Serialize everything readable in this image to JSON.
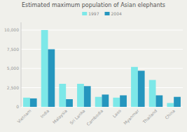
{
  "chart_data": {
    "type": "bar",
    "title": "Estimated maximum population of Asian elephants",
    "categories": [
      "Vietnam",
      "India",
      "Malaysia",
      "Sri Lanka",
      "Cambodia",
      "Laos",
      "Myanmar",
      "Thailand",
      "China"
    ],
    "series": [
      {
        "name": "1997",
        "color": "#7DE8E8",
        "values": [
          1200,
          10000,
          3000,
          3000,
          1300,
          1200,
          5200,
          3500,
          500
        ]
      },
      {
        "name": "2004",
        "color": "#2596BE",
        "values": [
          1100,
          7500,
          1000,
          2700,
          1600,
          1500,
          4700,
          1500,
          1300
        ]
      }
    ],
    "ylim": [
      0,
      11000
    ],
    "yticks": [
      0,
      {
        "value": 2500,
        "label": "2,500"
      },
      {
        "value": 5000,
        "label": "5,000"
      },
      {
        "value": 7500,
        "label": "7,500"
      },
      {
        "value": 10000,
        "label": "10,000"
      }
    ],
    "grid": true,
    "legend": "top"
  }
}
